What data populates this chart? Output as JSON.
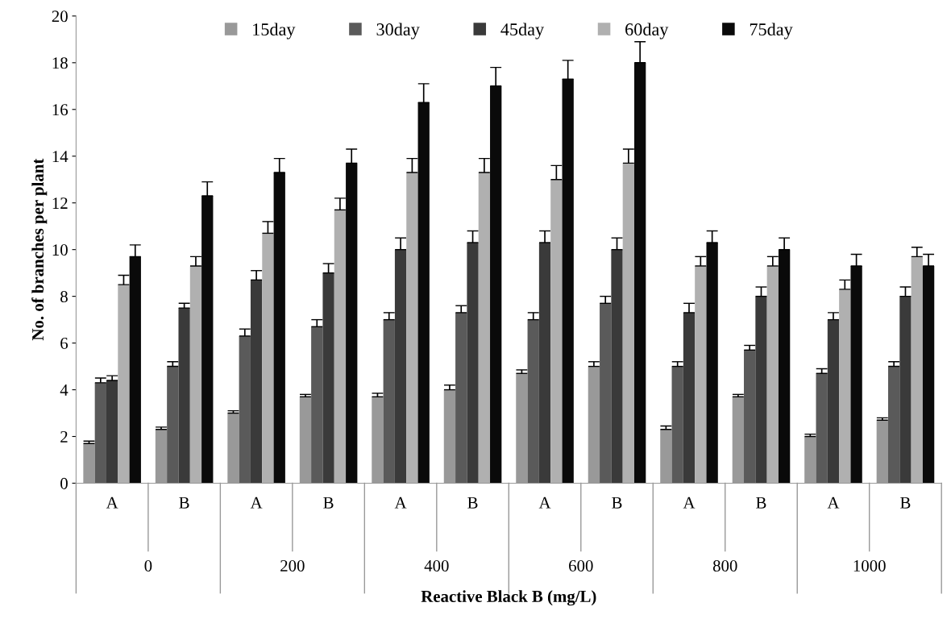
{
  "chart_data": {
    "type": "bar",
    "xlabel": "Reactive Black B (mg/L)",
    "ylabel": "No. of branches per plant",
    "categories": [
      "A",
      "B",
      "A",
      "B",
      "A",
      "B",
      "A",
      "B",
      "A",
      "B",
      "A",
      "B"
    ],
    "annotations": [
      "0",
      "200",
      "400",
      "600",
      "800",
      "1000"
    ],
    "series": [
      {
        "name": "15day",
        "color": "#999999",
        "values": [
          1.7,
          2.3,
          3.0,
          3.7,
          3.7,
          4.0,
          4.7,
          5.0,
          2.3,
          3.7,
          2.0,
          2.7
        ],
        "errors": [
          [
            1.7,
            1.8
          ],
          [
            2.3,
            2.4
          ],
          [
            3.0,
            3.1
          ],
          [
            3.7,
            3.8
          ],
          [
            3.7,
            3.85
          ],
          [
            4.0,
            4.2
          ],
          [
            4.7,
            4.85
          ],
          [
            5.0,
            5.2
          ],
          [
            2.3,
            2.45
          ],
          [
            3.7,
            3.8
          ],
          [
            2.0,
            2.1
          ],
          [
            2.7,
            2.8
          ]
        ]
      },
      {
        "name": "30day",
        "color": "#5a5a5a",
        "values": [
          4.3,
          5.0,
          6.3,
          6.7,
          7.0,
          7.3,
          7.0,
          7.7,
          5.0,
          5.7,
          4.7,
          5.0
        ],
        "errors": [
          [
            4.3,
            4.5
          ],
          [
            5.0,
            5.2
          ],
          [
            6.3,
            6.6
          ],
          [
            6.7,
            7.0
          ],
          [
            7.0,
            7.3
          ],
          [
            7.3,
            7.6
          ],
          [
            7.0,
            7.3
          ],
          [
            7.7,
            8.0
          ],
          [
            5.0,
            5.2
          ],
          [
            5.7,
            5.9
          ],
          [
            4.7,
            4.9
          ],
          [
            5.0,
            5.2
          ]
        ]
      },
      {
        "name": "45day",
        "color": "#3a3a3a",
        "values": [
          4.4,
          7.5,
          8.7,
          9.0,
          10.0,
          10.3,
          10.3,
          10.0,
          7.3,
          8.0,
          7.0,
          8.0
        ],
        "errors": [
          [
            4.4,
            4.6
          ],
          [
            7.5,
            7.7
          ],
          [
            8.7,
            9.1
          ],
          [
            9.0,
            9.4
          ],
          [
            10.0,
            10.5
          ],
          [
            10.3,
            10.8
          ],
          [
            10.3,
            10.8
          ],
          [
            10.0,
            10.5
          ],
          [
            7.3,
            7.7
          ],
          [
            8.0,
            8.4
          ],
          [
            7.0,
            7.3
          ],
          [
            8.0,
            8.4
          ]
        ]
      },
      {
        "name": "60day",
        "color": "#b0b0b0",
        "values": [
          8.5,
          9.3,
          10.7,
          11.7,
          13.3,
          13.3,
          13.0,
          13.7,
          9.3,
          9.3,
          8.3,
          9.7
        ],
        "errors": [
          [
            8.5,
            8.9
          ],
          [
            9.3,
            9.7
          ],
          [
            10.7,
            11.2
          ],
          [
            11.7,
            12.2
          ],
          [
            13.3,
            13.9
          ],
          [
            13.3,
            13.9
          ],
          [
            13.0,
            13.6
          ],
          [
            13.7,
            14.3
          ],
          [
            9.3,
            9.7
          ],
          [
            9.3,
            9.7
          ],
          [
            8.3,
            8.7
          ],
          [
            9.7,
            10.1
          ]
        ]
      },
      {
        "name": "75day",
        "color": "#0a0a0a",
        "values": [
          9.7,
          12.3,
          13.3,
          13.7,
          16.3,
          17.0,
          17.3,
          18.0,
          10.3,
          10.0,
          9.3,
          9.3
        ],
        "errors": [
          [
            9.7,
            10.2
          ],
          [
            12.3,
            12.9
          ],
          [
            13.3,
            13.9
          ],
          [
            13.7,
            14.3
          ],
          [
            16.3,
            17.1
          ],
          [
            17.0,
            17.8
          ],
          [
            17.3,
            18.1
          ],
          [
            18.0,
            18.9
          ],
          [
            10.3,
            10.8
          ],
          [
            10.0,
            10.5
          ],
          [
            9.3,
            9.8
          ],
          [
            9.3,
            9.8
          ]
        ]
      }
    ],
    "ylim": [
      0,
      20
    ],
    "yticks": [
      0,
      2,
      4,
      6,
      8,
      10,
      12,
      14,
      16,
      18,
      20
    ],
    "legend": "top",
    "grid": false
  }
}
